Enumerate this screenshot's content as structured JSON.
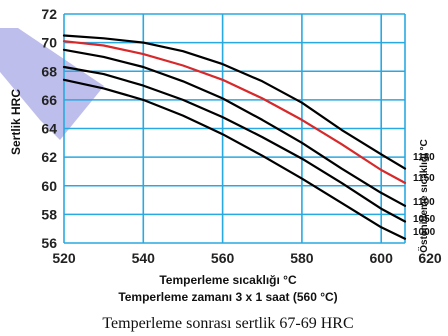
{
  "chart_data": {
    "type": "line",
    "x_axis": {
      "label_line1": "Temperleme sıcaklığı °C",
      "label_line2": "Temperleme zamanı 3 x 1 saat (560 °C)",
      "ticks": [
        520,
        540,
        560,
        580,
        600,
        620
      ],
      "xlim": [
        520,
        606
      ]
    },
    "y_axis": {
      "label": "Sertlik HRC",
      "ticks": [
        56,
        58,
        60,
        62,
        64,
        66,
        68,
        70,
        72
      ],
      "ylim": [
        56,
        72
      ]
    },
    "right_axis_label": "Östenitleme sıcaklığı °C",
    "grid": true,
    "colors": {
      "grid": "#29a9e1",
      "highlight_series": "#d7282a",
      "series": "#000000",
      "arrow_band": "#a8a8e6"
    },
    "series": [
      {
        "name": "1180",
        "highlight": false,
        "x": [
          520,
          530,
          540,
          550,
          560,
          570,
          580,
          590,
          600,
          606
        ],
        "y": [
          70.5,
          70.3,
          70.0,
          69.4,
          68.5,
          67.3,
          65.8,
          63.9,
          62.2,
          61.2
        ]
      },
      {
        "name": "1150",
        "highlight": true,
        "x": [
          520,
          530,
          540,
          550,
          560,
          570,
          580,
          590,
          600,
          606
        ],
        "y": [
          70.1,
          69.8,
          69.2,
          68.4,
          67.4,
          66.1,
          64.6,
          62.9,
          61.1,
          60.2
        ]
      },
      {
        "name": "1100",
        "highlight": false,
        "x": [
          520,
          530,
          540,
          550,
          560,
          570,
          580,
          590,
          600,
          606
        ],
        "y": [
          69.5,
          69.0,
          68.3,
          67.3,
          66.1,
          64.6,
          63.0,
          61.2,
          59.5,
          58.6
        ]
      },
      {
        "name": "1050",
        "highlight": false,
        "x": [
          520,
          530,
          540,
          550,
          560,
          570,
          580,
          590,
          600,
          606
        ],
        "y": [
          68.3,
          67.8,
          67.0,
          66.0,
          64.8,
          63.4,
          61.9,
          60.2,
          58.4,
          57.5
        ]
      },
      {
        "name": "1000",
        "highlight": false,
        "x": [
          520,
          530,
          540,
          550,
          560,
          570,
          580,
          590,
          600,
          606
        ],
        "y": [
          67.4,
          66.8,
          66.0,
          64.9,
          63.6,
          62.1,
          60.5,
          58.8,
          57.1,
          56.3
        ]
      }
    ],
    "caption": "Temperleme sonrası sertlik 67-69 HRC"
  }
}
